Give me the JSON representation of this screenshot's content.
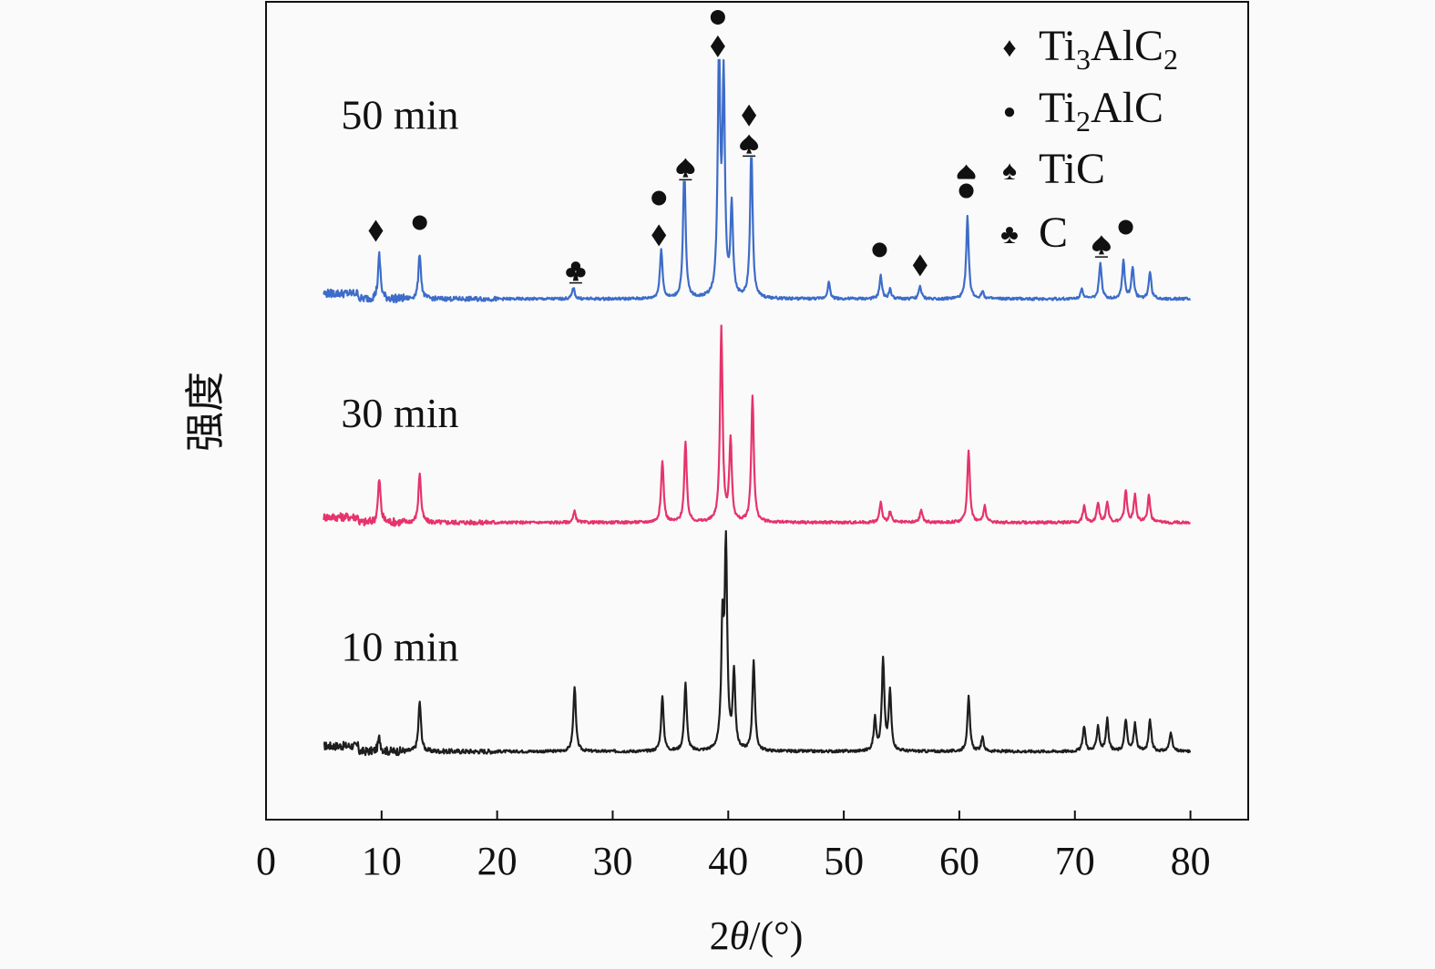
{
  "chart_data": {
    "type": "line",
    "title": "",
    "xlabel_prefix": "2",
    "xlabel_theta": "θ",
    "xlabel_suffix": "/(°)",
    "ylabel": "强度",
    "xlim": [
      0,
      85
    ],
    "ylim": [
      0,
      900
    ],
    "xticks": [
      0,
      10,
      20,
      30,
      40,
      50,
      60,
      70,
      80
    ],
    "x_range": [
      5,
      80
    ],
    "grid": false,
    "series": [
      {
        "name": "10 min",
        "color": "#1e1e1e",
        "baseline": 75,
        "peaks": [
          [
            9.8,
            15
          ],
          [
            13.3,
            55
          ],
          [
            26.7,
            72
          ],
          [
            34.3,
            60
          ],
          [
            36.3,
            75
          ],
          [
            39.5,
            130
          ],
          [
            39.8,
            220
          ],
          [
            40.5,
            85
          ],
          [
            42.2,
            100
          ],
          [
            52.7,
            35
          ],
          [
            53.4,
            100
          ],
          [
            54.0,
            65
          ],
          [
            60.8,
            60
          ],
          [
            62.0,
            15
          ],
          [
            70.8,
            28
          ],
          [
            72.0,
            28
          ],
          [
            72.8,
            35
          ],
          [
            74.4,
            35
          ],
          [
            75.2,
            30
          ],
          [
            76.5,
            35
          ],
          [
            78.3,
            22
          ]
        ]
      },
      {
        "name": "30 min",
        "color": "#e6336b",
        "baseline": 327,
        "peaks": [
          [
            9.8,
            48
          ],
          [
            13.3,
            55
          ],
          [
            26.7,
            12
          ],
          [
            34.3,
            68
          ],
          [
            36.3,
            88
          ],
          [
            39.4,
            215
          ],
          [
            40.2,
            90
          ],
          [
            42.1,
            140
          ],
          [
            53.2,
            22
          ],
          [
            54.0,
            12
          ],
          [
            56.7,
            14
          ],
          [
            60.8,
            80
          ],
          [
            62.2,
            18
          ],
          [
            70.8,
            18
          ],
          [
            72.0,
            22
          ],
          [
            72.8,
            22
          ],
          [
            74.4,
            35
          ],
          [
            75.2,
            30
          ],
          [
            76.4,
            30
          ]
        ]
      },
      {
        "name": "50 min",
        "color": "#3d6cc9",
        "baseline": 573,
        "peaks": [
          [
            9.8,
            48
          ],
          [
            13.3,
            50
          ],
          [
            26.6,
            12
          ],
          [
            34.2,
            55
          ],
          [
            36.2,
            145
          ],
          [
            39.2,
            262
          ],
          [
            39.6,
            235
          ],
          [
            40.3,
            100
          ],
          [
            42.0,
            165
          ],
          [
            48.7,
            18
          ],
          [
            53.2,
            25
          ],
          [
            54.0,
            10
          ],
          [
            56.6,
            14
          ],
          [
            60.7,
            90
          ],
          [
            62.0,
            8
          ],
          [
            70.6,
            12
          ],
          [
            72.2,
            40
          ],
          [
            74.2,
            42
          ],
          [
            75.0,
            35
          ],
          [
            76.5,
            30
          ]
        ]
      }
    ],
    "series_labels": [
      {
        "text": "50 min",
        "x": 6.5,
        "y": 760
      },
      {
        "text": "30 min",
        "x": 6.5,
        "y": 432
      },
      {
        "text": "10 min",
        "x": 6.5,
        "y": 175
      }
    ],
    "legend": {
      "placement": "top-right",
      "entries": [
        {
          "symbol": "♦",
          "label_main": "Ti",
          "sub1": "3",
          "mid": "AlC",
          "sub2": "2",
          "phase": "Ti3AlC2"
        },
        {
          "symbol": "●",
          "label_main": "Ti",
          "sub1": "2",
          "mid": "AlC",
          "sub2": "",
          "phase": "Ti2AlC"
        },
        {
          "symbol": "♠",
          "label_main": "TiC",
          "sub1": "",
          "mid": "",
          "sub2": "",
          "phase": "TiC"
        },
        {
          "symbol": "♣",
          "label_main": "C",
          "sub1": "",
          "mid": "",
          "sub2": "",
          "phase": "C"
        }
      ]
    },
    "annotations": [
      {
        "x": 9.5,
        "y": 648,
        "symbol": "♦"
      },
      {
        "x": 13.3,
        "y": 657,
        "symbol": "●"
      },
      {
        "x": 26.8,
        "y": 603,
        "symbol": "♣"
      },
      {
        "x": 34.0,
        "y": 684,
        "symbol": "●"
      },
      {
        "x": 34.0,
        "y": 643,
        "symbol": "♦"
      },
      {
        "x": 36.3,
        "y": 717,
        "symbol": "♠"
      },
      {
        "x": 39.1,
        "y": 883,
        "symbol": "●"
      },
      {
        "x": 39.1,
        "y": 851,
        "symbol": "♦"
      },
      {
        "x": 41.8,
        "y": 775,
        "symbol": "♦"
      },
      {
        "x": 41.8,
        "y": 743,
        "symbol": "♠"
      },
      {
        "x": 53.1,
        "y": 627,
        "symbol": "●"
      },
      {
        "x": 56.6,
        "y": 610,
        "symbol": "♦"
      },
      {
        "x": 60.6,
        "y": 710,
        "symbol": "♠"
      },
      {
        "x": 60.6,
        "y": 692,
        "symbol": "●"
      },
      {
        "x": 72.3,
        "y": 632,
        "symbol": "♠"
      },
      {
        "x": 74.4,
        "y": 652,
        "symbol": "●"
      }
    ]
  }
}
